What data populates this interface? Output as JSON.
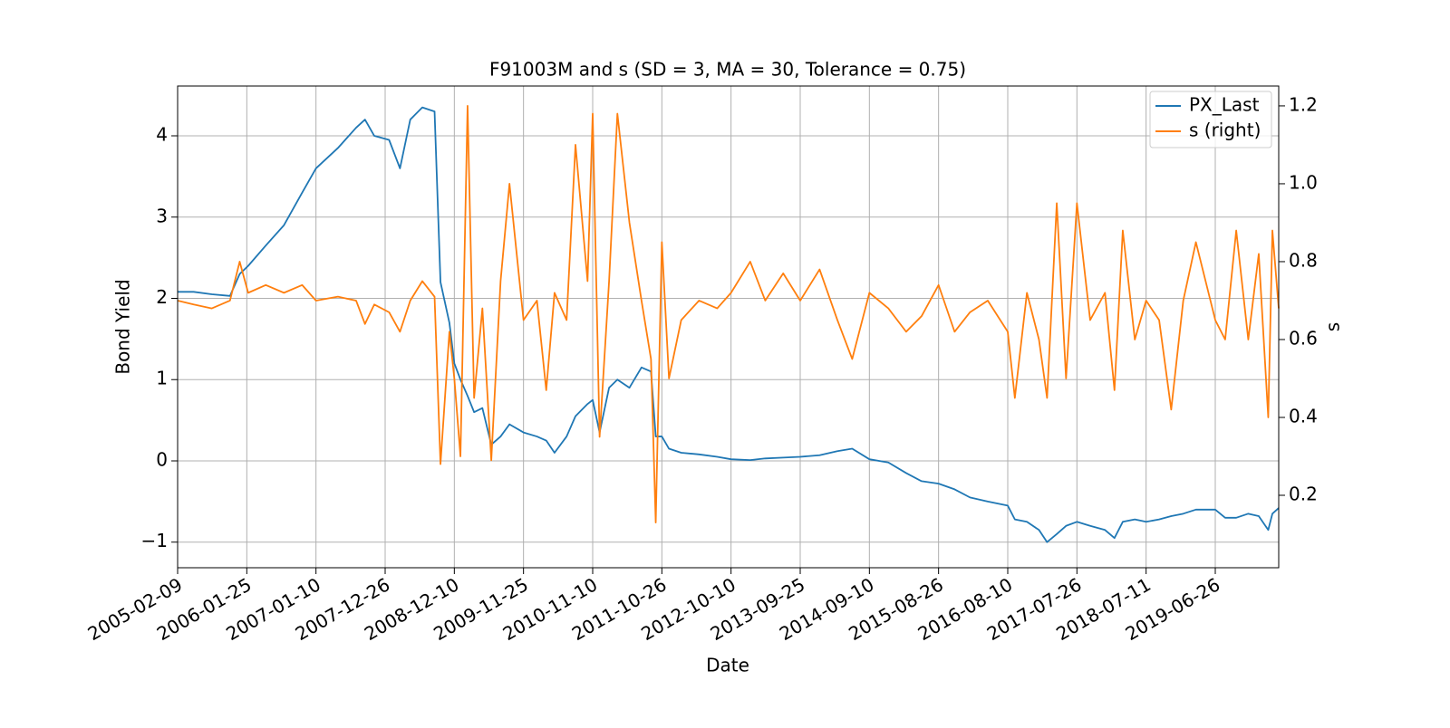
{
  "chart_data": {
    "type": "line",
    "title": "F91003M and s (SD = 3, MA = 30, Tolerance  = 0.75)",
    "xlabel": "Date",
    "ylabel": "Bond Yield",
    "y2label": "s",
    "grid": true,
    "legend": "upper right",
    "xlim": [
      "2005-02-09",
      "2020-05-12"
    ],
    "xticks": [
      "2005-02-09",
      "2006-01-25",
      "2007-01-10",
      "2007-12-26",
      "2008-12-10",
      "2009-11-25",
      "2010-11-10",
      "2011-10-26",
      "2012-10-10",
      "2013-09-25",
      "2014-09-10",
      "2015-08-26",
      "2016-08-10",
      "2017-07-26",
      "2018-07-11",
      "2019-06-26"
    ],
    "ylim": [
      -1.315,
      4.613
    ],
    "yticks": [
      {
        "value": -1,
        "label": "−1"
      },
      0,
      1,
      2,
      3,
      4
    ],
    "y2lim": [
      0.014,
      1.251
    ],
    "y2ticks": [
      0.2,
      0.4,
      0.6,
      0.8,
      {
        "value": 1,
        "label": "1.0"
      },
      1.2
    ],
    "x": [
      "2005-02-09",
      "2005-05-01",
      "2005-08-01",
      "2005-11-01",
      "2005-12-20",
      "2006-02-01",
      "2006-05-01",
      "2006-08-01",
      "2006-11-01",
      "2007-01-10",
      "2007-05-01",
      "2007-08-01",
      "2007-09-15",
      "2007-11-01",
      "2008-01-15",
      "2008-03-10",
      "2008-05-01",
      "2008-07-01",
      "2008-09-01",
      "2008-10-01",
      "2008-11-15",
      "2008-12-10",
      "2009-01-10",
      "2009-02-15",
      "2009-03-20",
      "2009-05-01",
      "2009-06-15",
      "2009-08-01",
      "2009-09-15",
      "2009-11-25",
      "2010-02-01",
      "2010-03-20",
      "2010-05-01",
      "2010-07-01",
      "2010-08-15",
      "2010-10-15",
      "2010-11-10",
      "2010-12-15",
      "2011-02-01",
      "2011-03-15",
      "2011-05-15",
      "2011-07-15",
      "2011-09-01",
      "2011-09-25",
      "2011-10-26",
      "2011-12-01",
      "2012-02-01",
      "2012-05-01",
      "2012-08-01",
      "2012-10-10",
      "2013-01-15",
      "2013-04-01",
      "2013-07-01",
      "2013-09-25",
      "2014-01-01",
      "2014-04-01",
      "2014-06-15",
      "2014-09-10",
      "2014-12-15",
      "2015-03-15",
      "2015-06-01",
      "2015-08-26",
      "2015-11-15",
      "2016-02-01",
      "2016-05-01",
      "2016-08-10",
      "2016-09-15",
      "2016-11-15",
      "2017-01-15",
      "2017-02-25",
      "2017-04-15",
      "2017-06-01",
      "2017-07-26",
      "2017-10-01",
      "2017-12-15",
      "2018-02-01",
      "2018-03-15",
      "2018-05-15",
      "2018-07-11",
      "2018-09-15",
      "2018-11-15",
      "2019-01-15",
      "2019-03-20",
      "2019-06-26",
      "2019-08-15",
      "2019-10-10",
      "2019-12-10",
      "2020-02-01",
      "2020-03-20",
      "2020-04-10",
      "2020-05-12"
    ],
    "series": [
      {
        "name": "PX_Last",
        "color": "#1f77b4",
        "values": [
          2.08,
          2.08,
          2.05,
          2.03,
          2.3,
          2.4,
          2.65,
          2.9,
          3.3,
          3.6,
          3.85,
          4.1,
          4.2,
          4.0,
          3.95,
          3.6,
          4.2,
          4.35,
          4.3,
          2.2,
          1.7,
          1.2,
          1.0,
          0.8,
          0.6,
          0.65,
          0.2,
          0.3,
          0.45,
          0.35,
          0.3,
          0.25,
          0.1,
          0.3,
          0.55,
          0.7,
          0.75,
          0.35,
          0.9,
          1.0,
          0.9,
          1.15,
          1.1,
          0.3,
          0.3,
          0.15,
          0.1,
          0.08,
          0.05,
          0.02,
          0.01,
          0.03,
          0.04,
          0.05,
          0.07,
          0.12,
          0.15,
          0.02,
          -0.02,
          -0.15,
          -0.25,
          -0.28,
          -0.35,
          -0.45,
          -0.5,
          -0.55,
          -0.72,
          -0.75,
          -0.85,
          -1.0,
          -0.9,
          -0.8,
          -0.75,
          -0.8,
          -0.85,
          -0.95,
          -0.75,
          -0.72,
          -0.75,
          -0.72,
          -0.68,
          -0.65,
          -0.6,
          -0.6,
          -0.7,
          -0.7,
          -0.65,
          -0.68,
          -0.85,
          -0.65,
          -0.58
        ]
      },
      {
        "name": "s (right)",
        "color": "#ff7f0e",
        "axis": "y2",
        "values": [
          0.7,
          0.69,
          0.68,
          0.7,
          0.8,
          0.72,
          0.74,
          0.72,
          0.74,
          0.7,
          0.71,
          0.7,
          0.64,
          0.69,
          0.67,
          0.62,
          0.7,
          0.75,
          0.71,
          0.28,
          0.62,
          0.5,
          0.3,
          1.2,
          0.45,
          0.68,
          0.29,
          0.75,
          1.0,
          0.65,
          0.7,
          0.47,
          0.72,
          0.65,
          1.1,
          0.75,
          1.18,
          0.35,
          0.75,
          1.18,
          0.9,
          0.7,
          0.55,
          0.13,
          0.85,
          0.5,
          0.65,
          0.7,
          0.68,
          0.72,
          0.8,
          0.7,
          0.77,
          0.7,
          0.78,
          0.65,
          0.55,
          0.72,
          0.68,
          0.62,
          0.66,
          0.74,
          0.62,
          0.67,
          0.7,
          0.62,
          0.45,
          0.72,
          0.6,
          0.45,
          0.95,
          0.5,
          0.95,
          0.65,
          0.72,
          0.47,
          0.88,
          0.6,
          0.7,
          0.65,
          0.42,
          0.7,
          0.85,
          0.65,
          0.6,
          0.88,
          0.6,
          0.82,
          0.4,
          0.88,
          0.68
        ]
      }
    ]
  }
}
